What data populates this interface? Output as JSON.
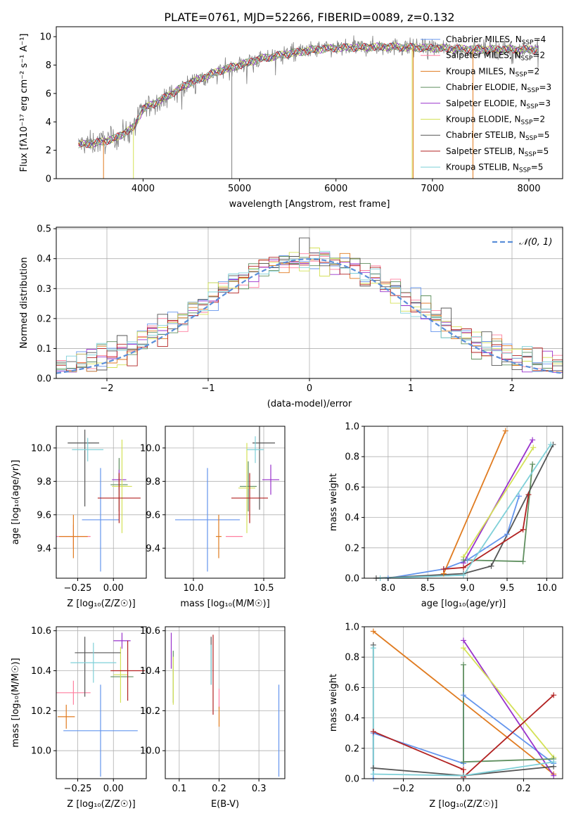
{
  "figure": {
    "title": "PLATE=0761, MJD=52266, FIBERID=0089, z=0.132"
  },
  "colors": {
    "Chabrier MILES": "#6495ed",
    "Salpeter MILES": "#ff7f9f",
    "Kroupa MILES": "#e07b20",
    "Chabrier ELODIE": "#5f8f5f",
    "Salpeter ELODIE": "#9932cc",
    "Kroupa ELODIE": "#d4e157",
    "Chabrier STELIB": "#555555",
    "Salpeter STELIB": "#b22222",
    "Kroupa STELIB": "#7fd0d8",
    "normal": "#5b8fd9",
    "data": "#808080",
    "grid": "#b0b0b0"
  },
  "chart_data": [
    {
      "id": "spectrum",
      "type": "line",
      "xlabel": "wavelength [Angstrom, rest frame]",
      "ylabel": "Flux [fλ10⁻¹⁷ erg cm⁻² s⁻¹ A⁻¹]",
      "xlim": [
        3100,
        8350
      ],
      "ylim": [
        0,
        10.7
      ],
      "xticks": [
        4000,
        5000,
        6000,
        7000,
        8000
      ],
      "yticks": [
        0,
        2,
        4,
        6,
        8,
        10
      ],
      "grid": false,
      "legend_placement": "right",
      "series": [
        {
          "name": "Chabrier MILES, N_SSP=4",
          "label": "Chabrier MILES, N",
          "sub": "SSP",
          "tail": "=4"
        },
        {
          "name": "Salpeter MILES, N_SSP=2",
          "label": "Salpeter MILES, N",
          "sub": "SSP",
          "tail": "=2"
        },
        {
          "name": "Kroupa MILES, N_SSP=2",
          "label": "Kroupa MILES, N",
          "sub": "SSP",
          "tail": "=2"
        },
        {
          "name": "Chabrier ELODIE, N_SSP=3",
          "label": "Chabrier ELODIE, N",
          "sub": "SSP",
          "tail": "=3"
        },
        {
          "name": "Salpeter ELODIE, N_SSP=3",
          "label": "Salpeter ELODIE, N",
          "sub": "SSP",
          "tail": "=3"
        },
        {
          "name": "Kroupa ELODIE, N_SSP=2",
          "label": "Kroupa ELODIE, N",
          "sub": "SSP",
          "tail": "=2"
        },
        {
          "name": "Chabrier STELIB, N_SSP=5",
          "label": "Chabrier STELIB, N",
          "sub": "SSP",
          "tail": "=5"
        },
        {
          "name": "Salpeter STELIB, N_SSP=5",
          "label": "Salpeter STELIB, N",
          "sub": "SSP",
          "tail": "=5"
        },
        {
          "name": "Kroupa STELIB, N_SSP=5",
          "label": "Kroupa STELIB, N",
          "sub": "SSP",
          "tail": "=5"
        }
      ],
      "continuum_knots": [
        [
          3330,
          2.4
        ],
        [
          3500,
          2.5
        ],
        [
          3700,
          2.8
        ],
        [
          3900,
          3.6
        ],
        [
          4000,
          4.9
        ],
        [
          4200,
          5.6
        ],
        [
          4500,
          6.8
        ],
        [
          4800,
          7.6
        ],
        [
          5000,
          8.0
        ],
        [
          5200,
          8.4
        ],
        [
          5500,
          8.8
        ],
        [
          5800,
          9.1
        ],
        [
          6000,
          9.2
        ],
        [
          6500,
          9.3
        ],
        [
          7000,
          9.2
        ],
        [
          7500,
          9.1
        ],
        [
          8000,
          9.1
        ],
        [
          8100,
          9.1
        ]
      ]
    },
    {
      "id": "residuals",
      "type": "step",
      "xlabel": "(data-model)/error",
      "ylabel": "Normed distribution",
      "xlim": [
        -2.5,
        2.5
      ],
      "ylim": [
        0,
        0.505
      ],
      "xticks": [
        -2,
        -1,
        0,
        1,
        2
      ],
      "yticks": [
        0.0,
        0.1,
        0.2,
        0.3,
        0.4,
        0.5
      ],
      "grid": true,
      "legend": {
        "label": "𝒩(0, 1)",
        "placement": "top-right"
      },
      "bin_width": 0.1
    },
    {
      "id": "age-Z",
      "type": "errorbar",
      "xlabel": "Z [log₁₀(Z/Z☉)]",
      "ylabel": "age  [log₁₀(age/yr)]",
      "xlim": [
        -0.4,
        0.23
      ],
      "ylim": [
        9.22,
        10.13
      ],
      "xticks": [
        -0.25,
        0.0
      ],
      "yticks": [
        9.4,
        9.6,
        9.8,
        10.0
      ],
      "grid": true,
      "points": [
        {
          "model": "Chabrier MILES",
          "x": -0.09,
          "xerr": 0.13,
          "y": 9.57,
          "yerr": 0.31
        },
        {
          "model": "Salpeter MILES",
          "x": -0.28,
          "xerr": 0.12,
          "y": 9.47,
          "yerr": 0.07
        },
        {
          "model": "Kroupa MILES",
          "x": -0.28,
          "xerr": 0.1,
          "y": 9.47,
          "yerr": 0.13
        },
        {
          "model": "Chabrier ELODIE",
          "x": 0.04,
          "xerr": 0.06,
          "y": 9.78,
          "yerr": 0.16
        },
        {
          "model": "Salpeter ELODIE",
          "x": 0.04,
          "xerr": 0.05,
          "y": 9.81,
          "yerr": 0.06
        },
        {
          "model": "Kroupa ELODIE",
          "x": 0.06,
          "xerr": 0.07,
          "y": 9.77,
          "yerr": 0.28
        },
        {
          "model": "Chabrier STELIB",
          "x": -0.21,
          "xerr": 0.11,
          "y": 10.03,
          "yerr": 0.0
        },
        {
          "model": "Chabrier STELIB",
          "x": -0.2,
          "xerr": 0.0,
          "y": 9.88,
          "yerr": 0.23
        },
        {
          "model": "Salpeter STELIB",
          "x": 0.04,
          "xerr": 0.15,
          "y": 9.7,
          "yerr": 0.15
        },
        {
          "model": "Kroupa STELIB",
          "x": -0.18,
          "xerr": 0.11,
          "y": 9.99,
          "yerr": 0.07
        }
      ]
    },
    {
      "id": "age-mass",
      "type": "errorbar",
      "xlabel": "mass [log₁₀(M/M☉)]",
      "ylabel": "",
      "xlim": [
        9.8,
        10.65
      ],
      "ylim": [
        9.22,
        10.13
      ],
      "xticks": [
        10.0,
        10.5
      ],
      "yticks": [
        9.4,
        9.6,
        9.8,
        10.0
      ],
      "grid": true,
      "points": [
        {
          "model": "Chabrier MILES",
          "x": 10.1,
          "xerr": 0.23,
          "y": 9.57,
          "yerr": 0.31
        },
        {
          "model": "Salpeter MILES",
          "x": 10.29,
          "xerr": 0.06,
          "y": 9.47,
          "yerr": 0.0
        },
        {
          "model": "Kroupa MILES",
          "x": 10.18,
          "xerr": 0.02,
          "y": 9.47,
          "yerr": 0.13
        },
        {
          "model": "Chabrier ELODIE",
          "x": 10.39,
          "xerr": 0.06,
          "y": 9.77,
          "yerr": 0.15
        },
        {
          "model": "Salpeter ELODIE",
          "x": 10.55,
          "xerr": 0.06,
          "y": 9.81,
          "yerr": 0.09
        },
        {
          "model": "Kroupa ELODIE",
          "x": 10.38,
          "xerr": 0.06,
          "y": 9.76,
          "yerr": 0.27
        },
        {
          "model": "Chabrier STELIB",
          "x": 10.5,
          "xerr": 0.08,
          "y": 10.03,
          "yerr": 0.0
        },
        {
          "model": "Chabrier STELIB",
          "x": 10.47,
          "xerr": 0.0,
          "y": 9.93,
          "yerr": 0.3
        },
        {
          "model": "Salpeter STELIB",
          "x": 10.4,
          "xerr": 0.13,
          "y": 9.7,
          "yerr": 0.15
        },
        {
          "model": "Kroupa STELIB",
          "x": 10.44,
          "xerr": 0.06,
          "y": 9.99,
          "yerr": 0.08
        }
      ]
    },
    {
      "id": "weight-age",
      "type": "line",
      "xlabel": "age  [log₁₀(age/yr)]",
      "ylabel": "mass weight",
      "xlim": [
        7.7,
        10.2
      ],
      "ylim": [
        0,
        1.0
      ],
      "xticks": [
        8.0,
        8.5,
        9.0,
        9.5,
        10.0
      ],
      "yticks": [
        0.0,
        0.2,
        0.4,
        0.6,
        0.8,
        1.0
      ],
      "grid": true,
      "series": [
        {
          "model": "Chabrier MILES",
          "x": [
            8.0,
            8.7,
            9.0,
            9.5,
            9.65
          ],
          "y": [
            0.0,
            0.06,
            0.12,
            0.29,
            0.54
          ]
        },
        {
          "model": "Kroupa MILES",
          "x": [
            8.7,
            9.48
          ],
          "y": [
            0.03,
            0.97
          ]
        },
        {
          "model": "Salpeter ELODIE",
          "x": [
            8.95,
            9.82
          ],
          "y": [
            0.1,
            0.91
          ]
        },
        {
          "model": "Kroupa ELODIE",
          "x": [
            8.95,
            9.83
          ],
          "y": [
            0.14,
            0.86
          ]
        },
        {
          "model": "Chabrier ELODIE",
          "x": [
            8.95,
            9.7,
            9.82
          ],
          "y": [
            0.12,
            0.11,
            0.75
          ]
        },
        {
          "model": "Chabrier STELIB",
          "x": [
            7.85,
            8.95,
            9.3,
            10.08
          ],
          "y": [
            0.0,
            0.03,
            0.08,
            0.88
          ]
        },
        {
          "model": "Salpeter STELIB",
          "x": [
            8.7,
            8.95,
            9.7,
            9.77
          ],
          "y": [
            0.06,
            0.07,
            0.32,
            0.55
          ]
        },
        {
          "model": "Kroupa STELIB",
          "x": [
            7.9,
            8.95,
            10.05
          ],
          "y": [
            0.0,
            0.02,
            0.88
          ]
        }
      ]
    },
    {
      "id": "mass-Z",
      "type": "errorbar",
      "xlabel": "Z [log₁₀(Z/Z☉)]",
      "ylabel": "mass [log₁₀(M/M☉)]",
      "xlim": [
        -0.4,
        0.23
      ],
      "ylim": [
        9.86,
        10.62
      ],
      "xticks": [
        -0.25,
        0.0
      ],
      "yticks": [
        10.0,
        10.2,
        10.4,
        10.6
      ],
      "grid": true,
      "points": [
        {
          "model": "Chabrier MILES",
          "x": -0.09,
          "xerr": 0.26,
          "y": 10.1,
          "yerr": 0.23
        },
        {
          "model": "Salpeter MILES",
          "x": -0.28,
          "xerr": 0.12,
          "y": 10.29,
          "yerr": 0.06
        },
        {
          "model": "Kroupa MILES",
          "x": -0.33,
          "xerr": 0.06,
          "y": 10.17,
          "yerr": 0.06
        },
        {
          "model": "Chabrier ELODIE",
          "x": 0.06,
          "xerr": 0.08,
          "y": 10.37,
          "yerr": 0.0
        },
        {
          "model": "Salpeter ELODIE",
          "x": 0.06,
          "xerr": 0.06,
          "y": 10.55,
          "yerr": 0.04
        },
        {
          "model": "Kroupa ELODIE",
          "x": 0.05,
          "xerr": 0.05,
          "y": 10.38,
          "yerr": 0.14
        },
        {
          "model": "Chabrier STELIB",
          "x": -0.11,
          "xerr": 0.16,
          "y": 10.49,
          "yerr": 0.0
        },
        {
          "model": "Chabrier STELIB",
          "x": -0.2,
          "xerr": 0.0,
          "y": 10.42,
          "yerr": 0.15
        },
        {
          "model": "Salpeter STELIB",
          "x": 0.1,
          "xerr": 0.12,
          "y": 10.4,
          "yerr": 0.15
        },
        {
          "model": "Kroupa STELIB",
          "x": -0.14,
          "xerr": 0.16,
          "y": 10.44,
          "yerr": 0.1
        }
      ]
    },
    {
      "id": "mass-EBV",
      "type": "errorbar",
      "xlabel": "E(B-V)",
      "ylabel": "",
      "xlim": [
        0.065,
        0.365
      ],
      "ylim": [
        9.86,
        10.62
      ],
      "xticks": [
        0.1,
        0.2,
        0.3
      ],
      "yticks": [
        10.0,
        10.2,
        10.4,
        10.6
      ],
      "grid": true,
      "points": [
        {
          "model": "Chabrier MILES",
          "x": 0.35,
          "xerr": 0.0,
          "y": 10.1,
          "yerr": 0.23
        },
        {
          "model": "Salpeter MILES",
          "x": 0.2,
          "xerr": 0.0,
          "y": 10.26,
          "yerr": 0.05
        },
        {
          "model": "Kroupa MILES",
          "x": 0.2,
          "xerr": 0.0,
          "y": 10.17,
          "yerr": 0.05
        },
        {
          "model": "Chabrier ELODIE",
          "x": 0.085,
          "xerr": 0.0,
          "y": 10.37,
          "yerr": 0.13
        },
        {
          "model": "Salpeter ELODIE",
          "x": 0.08,
          "xerr": 0.0,
          "y": 10.5,
          "yerr": 0.09
        },
        {
          "model": "Kroupa ELODIE",
          "x": 0.085,
          "xerr": 0.0,
          "y": 10.35,
          "yerr": 0.12
        },
        {
          "model": "Chabrier STELIB",
          "x": 0.18,
          "xerr": 0.0,
          "y": 10.45,
          "yerr": 0.12
        },
        {
          "model": "Salpeter STELIB",
          "x": 0.185,
          "xerr": 0.0,
          "y": 10.38,
          "yerr": 0.2
        },
        {
          "model": "Kroupa STELIB",
          "x": 0.18,
          "xerr": 0.0,
          "y": 10.43,
          "yerr": 0.1
        }
      ]
    },
    {
      "id": "weight-Z",
      "type": "line",
      "xlabel": "Z [log₁₀(Z/Z☉)]",
      "ylabel": "mass weight",
      "xlim": [
        -0.33,
        0.33
      ],
      "ylim": [
        0,
        1.0
      ],
      "xticks": [
        -0.2,
        0.0,
        0.2
      ],
      "yticks": [
        0.0,
        0.2,
        0.4,
        0.6,
        0.8,
        1.0
      ],
      "grid": true,
      "series": [
        {
          "model": "Chabrier MILES",
          "x": [
            -0.3,
            -0.3,
            0.0,
            0.0,
            0.3
          ],
          "y": [
            0.0,
            0.3,
            0.1,
            0.55,
            0.1
          ]
        },
        {
          "model": "Kroupa MILES",
          "x": [
            -0.3,
            0.3
          ],
          "y": [
            0.97,
            0.03
          ]
        },
        {
          "model": "Salpeter ELODIE",
          "x": [
            0.0,
            0.3
          ],
          "y": [
            0.91,
            0.02
          ]
        },
        {
          "model": "Kroupa ELODIE",
          "x": [
            0.0,
            0.3
          ],
          "y": [
            0.86,
            0.14
          ]
        },
        {
          "model": "Chabrier ELODIE",
          "x": [
            0.0,
            0.0,
            0.3
          ],
          "y": [
            0.75,
            0.11,
            0.13
          ]
        },
        {
          "model": "Chabrier STELIB",
          "x": [
            -0.3,
            -0.3,
            0.0,
            0.3
          ],
          "y": [
            0.88,
            0.07,
            0.02,
            0.08
          ]
        },
        {
          "model": "Salpeter STELIB",
          "x": [
            -0.3,
            0.0,
            0.0,
            0.3
          ],
          "y": [
            0.31,
            0.06,
            0.01,
            0.55
          ]
        },
        {
          "model": "Kroupa STELIB",
          "x": [
            -0.3,
            -0.3,
            0.0,
            0.3
          ],
          "y": [
            0.86,
            0.03,
            0.02,
            0.11
          ]
        }
      ]
    }
  ]
}
